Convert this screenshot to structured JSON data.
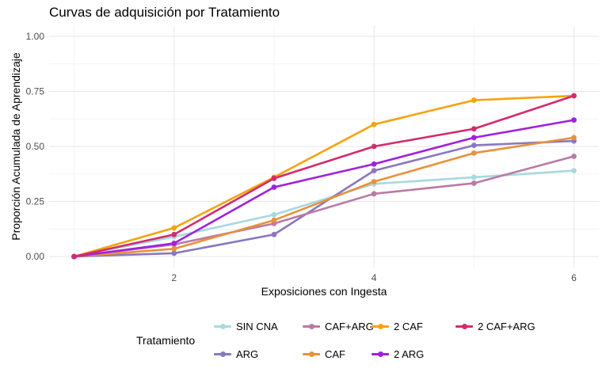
{
  "chart_data": {
    "type": "line",
    "title": "Curvas de adquisición por Tratamiento",
    "xlabel": "Exposiciones con Ingesta",
    "ylabel": "Proporción Acumulada de Aprendizaje",
    "xlim": [
      0.75,
      6.25
    ],
    "ylim": [
      -0.05,
      1.05
    ],
    "x_ticks": [
      2,
      4,
      6
    ],
    "y_ticks": [
      0,
      0.25,
      0.5,
      0.75,
      1.0
    ],
    "y_tick_labels": [
      "0.00",
      "0.25",
      "0.50",
      "0.75",
      "1.00"
    ],
    "x": [
      1,
      2,
      3,
      4,
      5,
      6
    ],
    "grid": true,
    "legend_position": "bottom",
    "legend_title": "Tratamiento",
    "series": [
      {
        "name": "SIN CNA",
        "color": "#a8d8e0",
        "values": [
          0.0,
          0.09,
          0.19,
          0.33,
          0.36,
          0.39
        ]
      },
      {
        "name": "ARG",
        "color": "#8a78be",
        "values": [
          0.0,
          0.015,
          0.1,
          0.39,
          0.505,
          0.525
        ]
      },
      {
        "name": "CAF+ARG",
        "color": "#b97aa6",
        "values": [
          0.0,
          0.055,
          0.15,
          0.285,
          0.333,
          0.455
        ]
      },
      {
        "name": "CAF",
        "color": "#e8913a",
        "values": [
          0.0,
          0.035,
          0.165,
          0.34,
          0.47,
          0.54
        ]
      },
      {
        "name": "2 CAF",
        "color": "#f5a30e",
        "values": [
          0.0,
          0.13,
          0.36,
          0.6,
          0.71,
          0.73
        ]
      },
      {
        "name": "2 ARG",
        "color": "#a020e0",
        "values": [
          0.0,
          0.06,
          0.315,
          0.42,
          0.54,
          0.62
        ]
      },
      {
        "name": "2 CAF+ARG",
        "color": "#d42a6e",
        "values": [
          0.0,
          0.1,
          0.355,
          0.5,
          0.58,
          0.73
        ]
      }
    ]
  }
}
